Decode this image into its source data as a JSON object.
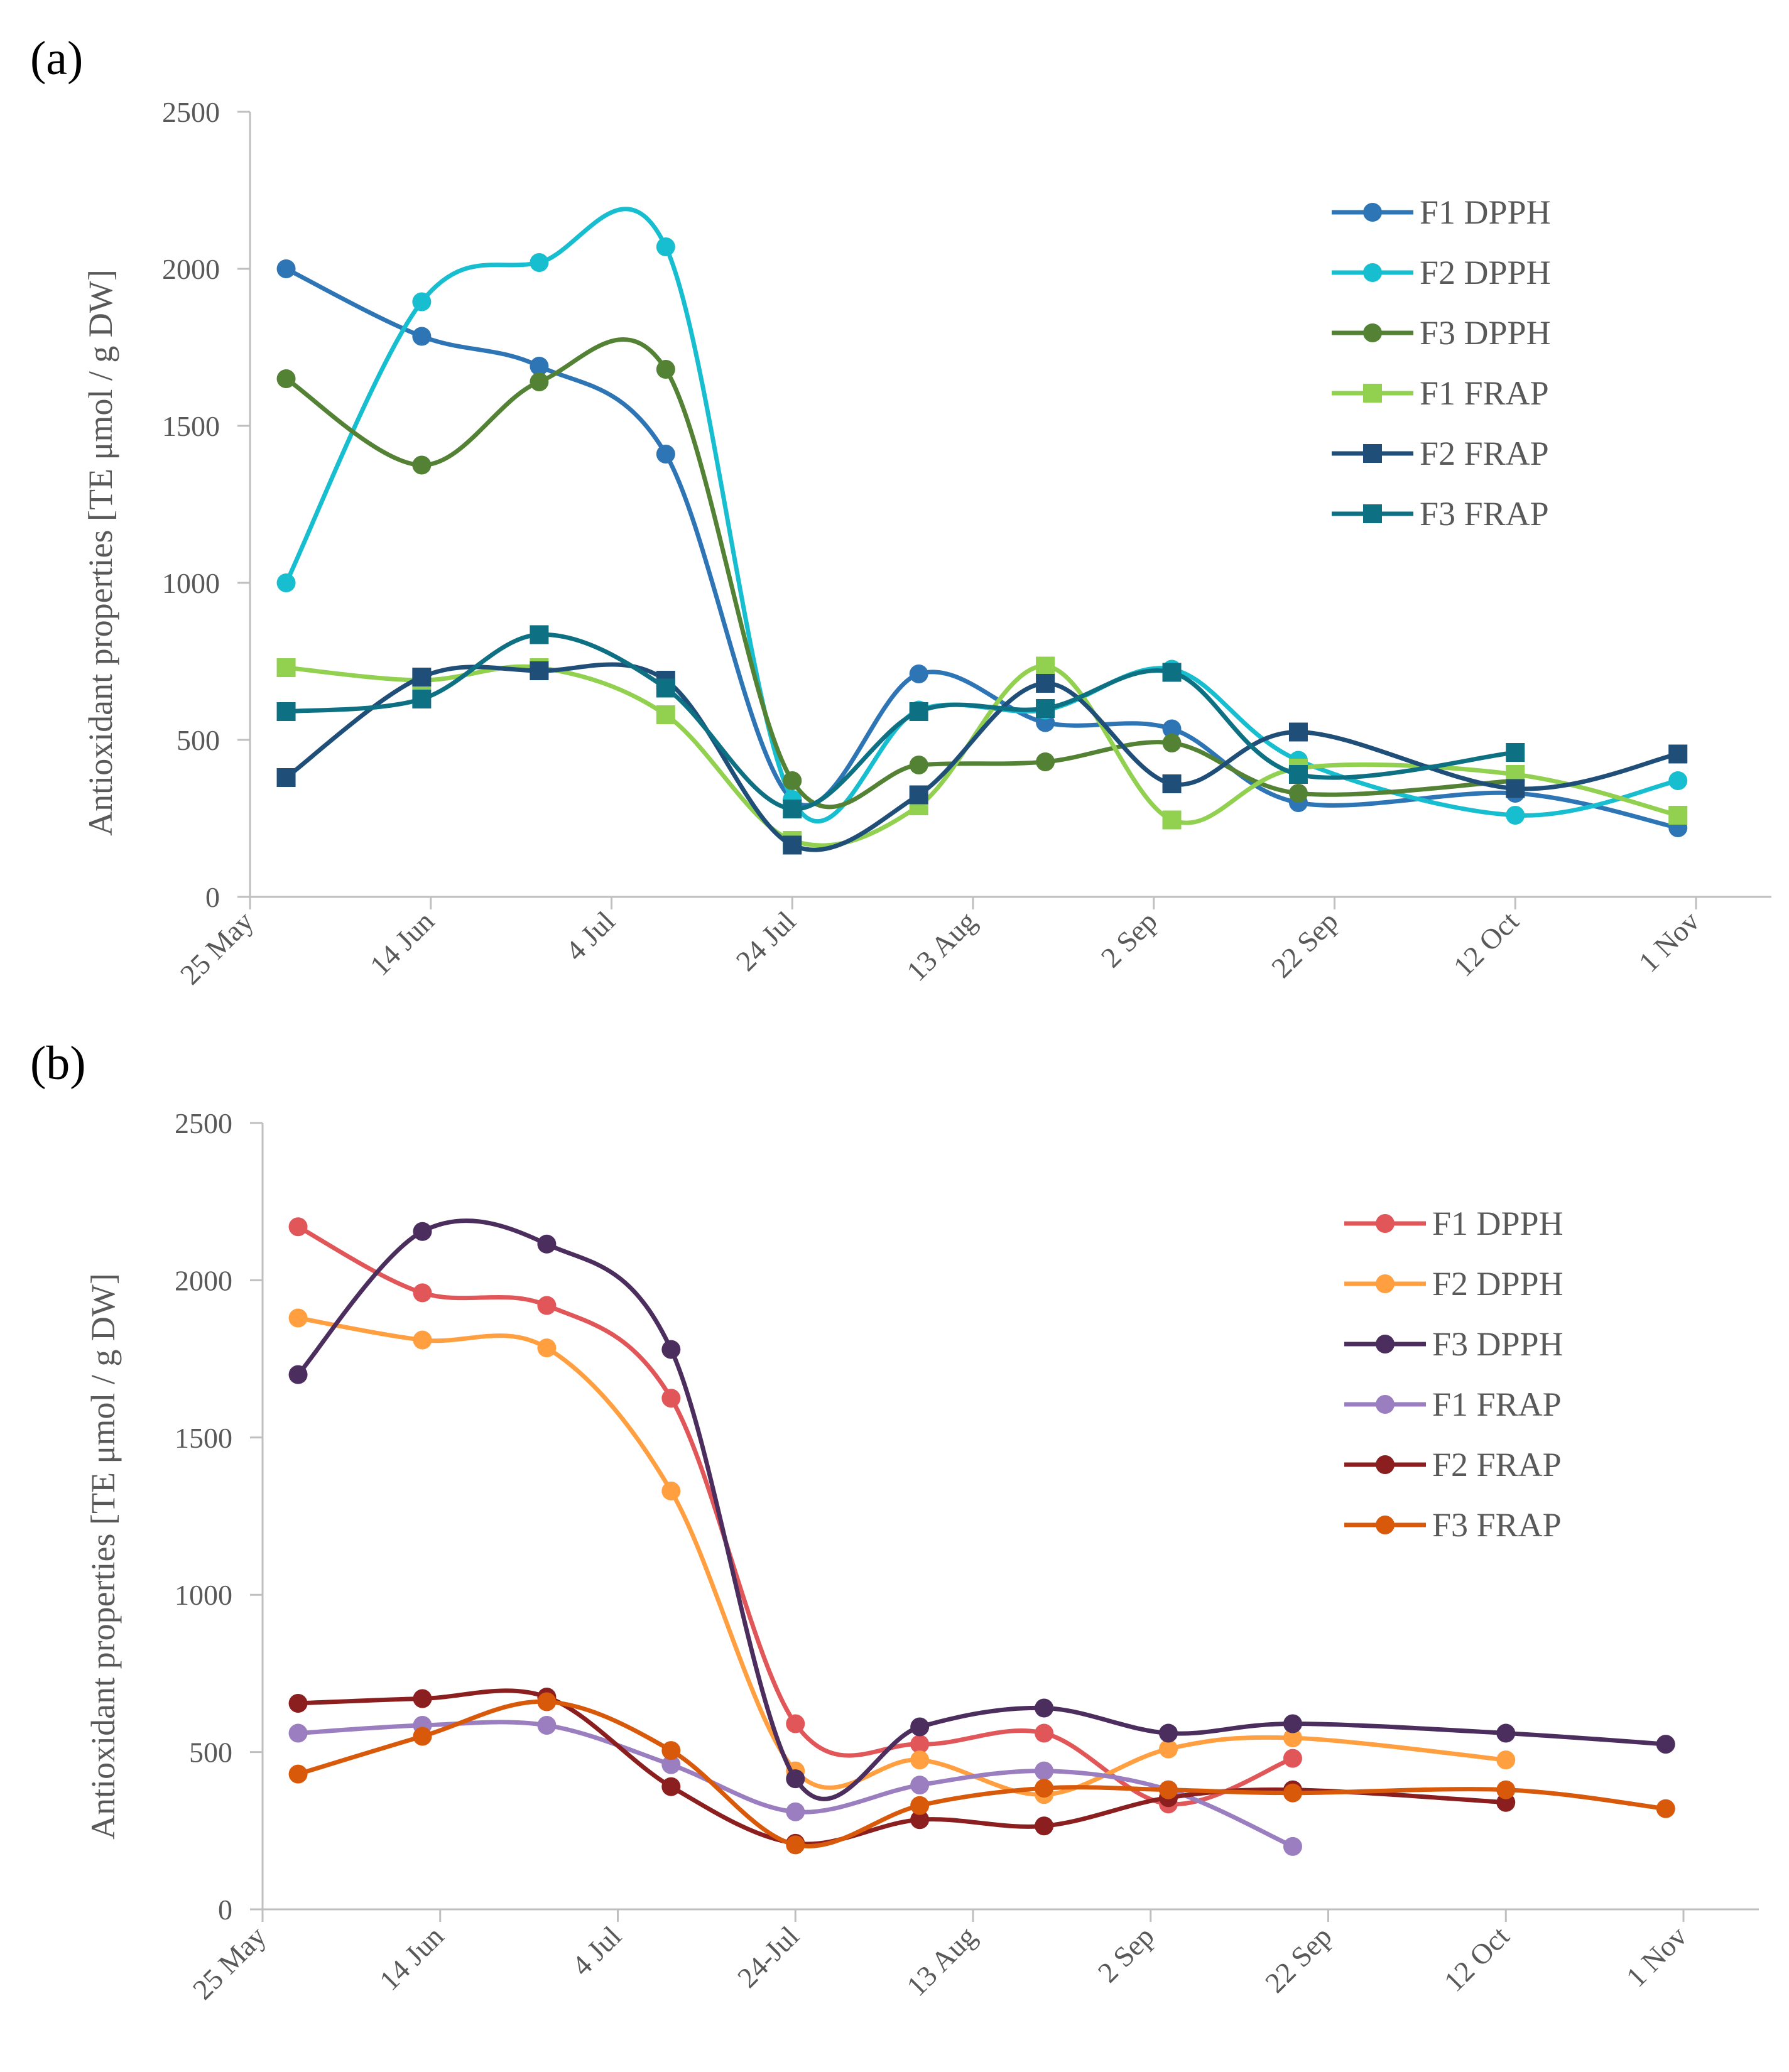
{
  "chart_data": [
    {
      "panel_label": "(a)",
      "type": "line",
      "ylabel": "Antioxidant properties  [TE μmol / g DW]",
      "xlabel": "",
      "ylim": [
        0,
        2500
      ],
      "yticks": [
        0,
        500,
        1000,
        1500,
        2000,
        2500
      ],
      "xlim_days": [
        0,
        160
      ],
      "xticks": [
        {
          "day": 0,
          "label": "25 May"
        },
        {
          "day": 20,
          "label": "14 Jun"
        },
        {
          "day": 40,
          "label": "4 Jul"
        },
        {
          "day": 60,
          "label": "24 Jul"
        },
        {
          "day": 80,
          "label": "13 Aug"
        },
        {
          "day": 100,
          "label": "2 Sep"
        },
        {
          "day": 120,
          "label": "22 Sep"
        },
        {
          "day": 140,
          "label": "12 Oct"
        },
        {
          "day": 160,
          "label": "1 Nov"
        }
      ],
      "legend_position": "top-right",
      "series": [
        {
          "name": "F1 DPPH",
          "color": "#2e75b6",
          "marker": "circle",
          "x": [
            4,
            19,
            32,
            46,
            60,
            74,
            88,
            102,
            116,
            140,
            158
          ],
          "values": [
            2000,
            1785,
            1690,
            1410,
            310,
            710,
            555,
            535,
            300,
            330,
            220
          ]
        },
        {
          "name": "F2 DPPH",
          "color": "#17becf",
          "marker": "circle",
          "x": [
            4,
            19,
            32,
            46,
            60,
            74,
            88,
            102,
            116,
            140,
            158
          ],
          "values": [
            1000,
            1895,
            2020,
            2070,
            310,
            595,
            595,
            725,
            435,
            260,
            370
          ]
        },
        {
          "name": "F3 DPPH",
          "color": "#548235",
          "marker": "circle",
          "x": [
            4,
            19,
            32,
            46,
            60,
            74,
            88,
            102,
            116,
            140
          ],
          "values": [
            1650,
            1375,
            1640,
            1680,
            370,
            420,
            430,
            490,
            330,
            370
          ]
        },
        {
          "name": "F1 FRAP",
          "color": "#92d050",
          "marker": "square",
          "x": [
            4,
            19,
            32,
            46,
            60,
            74,
            88,
            102,
            116,
            140,
            158
          ],
          "values": [
            730,
            690,
            730,
            580,
            180,
            290,
            735,
            245,
            410,
            390,
            260
          ]
        },
        {
          "name": "F2 FRAP",
          "color": "#1f4e79",
          "marker": "square",
          "x": [
            4,
            19,
            32,
            46,
            60,
            74,
            88,
            102,
            116,
            140,
            158
          ],
          "values": [
            380,
            700,
            720,
            690,
            165,
            325,
            680,
            360,
            525,
            345,
            455
          ]
        },
        {
          "name": "F3 FRAP",
          "color": "#0e7083",
          "marker": "square",
          "x": [
            4,
            19,
            32,
            46,
            60,
            74,
            88,
            102,
            116,
            140
          ],
          "values": [
            590,
            630,
            835,
            665,
            280,
            590,
            600,
            715,
            390,
            460
          ]
        }
      ]
    },
    {
      "panel_label": "(b)",
      "type": "line",
      "ylabel": "Antioxidant properties  [TE μmol / g DW]",
      "xlabel": "",
      "ylim": [
        0,
        2500
      ],
      "yticks": [
        0,
        500,
        1000,
        1500,
        2000,
        2500
      ],
      "xlim_days": [
        0,
        160
      ],
      "xticks": [
        {
          "day": 0,
          "label": "25 May"
        },
        {
          "day": 20,
          "label": "14 Jun"
        },
        {
          "day": 40,
          "label": "4 Jul"
        },
        {
          "day": 60,
          "label": "24-Jul"
        },
        {
          "day": 80,
          "label": "13 Aug"
        },
        {
          "day": 100,
          "label": "2 Sep"
        },
        {
          "day": 120,
          "label": "22 Sep"
        },
        {
          "day": 140,
          "label": "12 Oct"
        },
        {
          "day": 160,
          "label": "1 Nov"
        }
      ],
      "legend_position": "top-right",
      "series": [
        {
          "name": "F1 DPPH",
          "color": "#e15759",
          "marker": "circle",
          "x": [
            4,
            18,
            32,
            46,
            60,
            74,
            88,
            102,
            116
          ],
          "values": [
            2170,
            1960,
            1920,
            1625,
            590,
            525,
            560,
            335,
            480
          ]
        },
        {
          "name": "F2 DPPH",
          "color": "#ff9f40",
          "marker": "circle",
          "x": [
            4,
            18,
            32,
            46,
            60,
            74,
            88,
            102,
            116,
            140
          ],
          "values": [
            1880,
            1810,
            1785,
            1330,
            440,
            475,
            365,
            510,
            545,
            475
          ]
        },
        {
          "name": "F3 DPPH",
          "color": "#4b2e5e",
          "marker": "circle",
          "x": [
            4,
            18,
            32,
            46,
            60,
            74,
            88,
            102,
            116,
            140,
            158
          ],
          "values": [
            1700,
            2155,
            2115,
            1780,
            415,
            580,
            640,
            560,
            590,
            560,
            525
          ]
        },
        {
          "name": "F1 FRAP",
          "color": "#9a7ec0",
          "marker": "circle",
          "x": [
            4,
            18,
            32,
            46,
            60,
            74,
            88,
            102,
            116
          ],
          "values": [
            560,
            585,
            585,
            460,
            310,
            395,
            440,
            380,
            200
          ]
        },
        {
          "name": "F2 FRAP",
          "color": "#8b1e1e",
          "marker": "circle",
          "x": [
            4,
            18,
            32,
            46,
            60,
            74,
            88,
            102,
            116,
            140
          ],
          "values": [
            655,
            670,
            675,
            390,
            210,
            285,
            265,
            355,
            380,
            340
          ]
        },
        {
          "name": "F3 FRAP",
          "color": "#d9590b",
          "marker": "circle",
          "x": [
            4,
            18,
            32,
            46,
            60,
            74,
            88,
            102,
            116,
            140,
            158
          ],
          "values": [
            430,
            550,
            660,
            505,
            205,
            330,
            385,
            380,
            370,
            380,
            320
          ]
        }
      ]
    }
  ]
}
